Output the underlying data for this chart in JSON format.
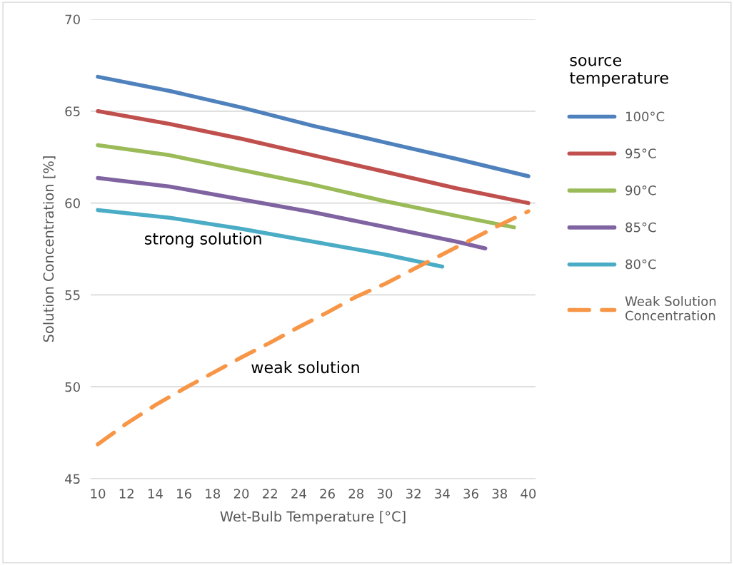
{
  "chart_data": {
    "type": "line",
    "xlabel": "Wet-Bulb Temperature [°C]",
    "ylabel": "Solution Concentration [%]",
    "legend_title": "source\ntemperature",
    "legend": "right",
    "grid": "y",
    "xlim": [
      9.5,
      40.5
    ],
    "xticks": [
      10,
      12,
      14,
      16,
      18,
      20,
      22,
      24,
      26,
      28,
      30,
      32,
      34,
      36,
      38,
      40
    ],
    "ylim": [
      45,
      70
    ],
    "yticks": [
      45,
      50,
      55,
      60,
      65,
      70
    ],
    "annotations": [
      "strong solution",
      "weak solution"
    ],
    "series": [
      {
        "name": "100°C",
        "color": "#4f81bd",
        "x": [
          10,
          15,
          20,
          25,
          30,
          35,
          40
        ],
        "values": [
          66.87,
          66.1,
          65.2,
          64.2,
          63.3,
          62.4,
          61.46
        ]
      },
      {
        "name": "95°C",
        "color": "#c0504d",
        "x": [
          10,
          15,
          20,
          25,
          30,
          35,
          40
        ],
        "values": [
          65.0,
          64.3,
          63.5,
          62.6,
          61.7,
          60.8,
          60.0
        ]
      },
      {
        "name": "90°C",
        "color": "#9bbb59",
        "x": [
          10,
          15,
          20,
          25,
          30,
          35,
          39
        ],
        "values": [
          63.15,
          62.6,
          61.8,
          61.0,
          60.1,
          59.3,
          58.68
        ]
      },
      {
        "name": "85°C",
        "color": "#8064a2",
        "x": [
          10,
          15,
          20,
          25,
          30,
          35,
          37
        ],
        "values": [
          61.36,
          60.9,
          60.2,
          59.5,
          58.7,
          57.9,
          57.53
        ]
      },
      {
        "name": "80°C",
        "color": "#4bacc6",
        "x": [
          10,
          15,
          20,
          25,
          30,
          34
        ],
        "values": [
          59.62,
          59.2,
          58.6,
          57.9,
          57.2,
          56.54
        ]
      },
      {
        "name": "Weak Solution\nConcentration",
        "color": "#f79646",
        "line_style": "dashed",
        "x": [
          10,
          12,
          14,
          16,
          18,
          20,
          22,
          24,
          26,
          28,
          30,
          32,
          34,
          36,
          38,
          40
        ],
        "values": [
          46.87,
          48.0,
          49.0,
          49.9,
          50.75,
          51.6,
          52.4,
          53.25,
          54.05,
          54.9,
          55.6,
          56.4,
          57.2,
          58.0,
          58.8,
          59.55
        ]
      }
    ]
  }
}
